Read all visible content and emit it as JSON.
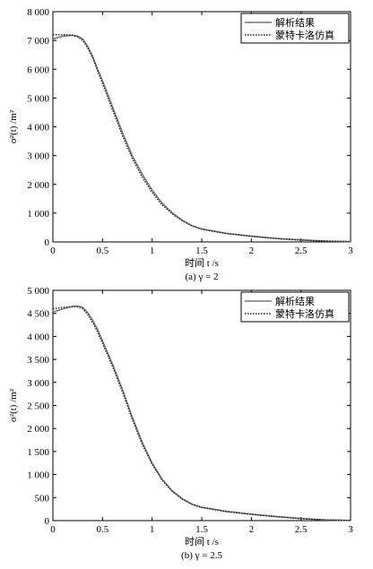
{
  "chart_data": [
    {
      "type": "line",
      "panel_label": "(a) γ = 2",
      "xlabel": "时间 t /s",
      "ylabel": "σ²(t) /m²",
      "xlim": [
        0,
        3
      ],
      "ylim": [
        0,
        8000
      ],
      "xticks": [
        0,
        0.5,
        1,
        1.5,
        2,
        2.5,
        3
      ],
      "xtick_labels": [
        "0",
        "0.5",
        "1",
        "1.5",
        "2",
        "2.5",
        "3"
      ],
      "yticks": [
        0,
        1000,
        2000,
        3000,
        4000,
        5000,
        6000,
        7000,
        8000
      ],
      "ytick_labels": [
        "0",
        "1 000",
        "2 000",
        "3 000",
        "4 000",
        "5 000",
        "6 000",
        "7 000",
        "8 000"
      ],
      "legend_position": "top-right",
      "series": [
        {
          "name": "解析结果",
          "style": "solid",
          "x": [
            0,
            0.1,
            0.2,
            0.25,
            0.3,
            0.35,
            0.4,
            0.45,
            0.5,
            0.55,
            0.6,
            0.7,
            0.8,
            0.9,
            1.0,
            1.1,
            1.2,
            1.3,
            1.4,
            1.5,
            1.75,
            2.0,
            2.25,
            2.5,
            2.75,
            3.0
          ],
          "y": [
            7050,
            7150,
            7180,
            7150,
            7050,
            6800,
            6450,
            6000,
            5600,
            5150,
            4700,
            3800,
            3000,
            2350,
            1800,
            1350,
            1020,
            760,
            570,
            450,
            300,
            200,
            120,
            70,
            30,
            10
          ]
        },
        {
          "name": "蒙特卡洛仿真",
          "style": "dotted",
          "x": [
            0,
            0.1,
            0.2,
            0.25,
            0.3,
            0.35,
            0.4,
            0.45,
            0.5,
            0.55,
            0.6,
            0.7,
            0.8,
            0.9,
            1.0,
            1.1,
            1.2,
            1.3,
            1.4,
            1.5,
            1.75,
            2.0,
            2.25,
            2.5,
            2.75,
            3.0
          ],
          "y": [
            7200,
            7200,
            7180,
            7120,
            7000,
            6750,
            6400,
            5950,
            5500,
            5050,
            4600,
            3700,
            2900,
            2250,
            1720,
            1290,
            980,
            740,
            560,
            440,
            290,
            195,
            115,
            65,
            28,
            8
          ]
        }
      ]
    },
    {
      "type": "line",
      "panel_label": "(b) γ = 2.5",
      "xlabel": "时间 t /s",
      "ylabel": "σ²(t) /m²",
      "xlim": [
        0,
        3
      ],
      "ylim": [
        0,
        5000
      ],
      "xticks": [
        0,
        0.5,
        1,
        1.5,
        2,
        2.5,
        3
      ],
      "xtick_labels": [
        "0",
        "0.5",
        "1",
        "1.5",
        "2",
        "2.5",
        "3"
      ],
      "yticks": [
        0,
        500,
        1000,
        1500,
        2000,
        2500,
        3000,
        3500,
        4000,
        4500,
        5000
      ],
      "ytick_labels": [
        "0",
        "500",
        "1 000",
        "1 500",
        "2 000",
        "2 500",
        "3 000",
        "3 500",
        "4 000",
        "4 500",
        "5 000"
      ],
      "legend_position": "top-right",
      "series": [
        {
          "name": "解析结果",
          "style": "solid",
          "x": [
            0,
            0.1,
            0.2,
            0.25,
            0.3,
            0.35,
            0.4,
            0.45,
            0.5,
            0.55,
            0.6,
            0.7,
            0.8,
            0.9,
            1.0,
            1.1,
            1.2,
            1.3,
            1.4,
            1.5,
            1.75,
            2.0,
            2.25,
            2.5,
            2.75,
            3.0
          ],
          "y": [
            4530,
            4600,
            4650,
            4660,
            4630,
            4520,
            4350,
            4150,
            3900,
            3650,
            3400,
            2850,
            2250,
            1700,
            1250,
            900,
            650,
            480,
            360,
            290,
            200,
            140,
            90,
            45,
            15,
            3
          ]
        },
        {
          "name": "蒙特卡洛仿真",
          "style": "dotted",
          "x": [
            0,
            0.1,
            0.2,
            0.25,
            0.3,
            0.35,
            0.4,
            0.45,
            0.5,
            0.55,
            0.6,
            0.7,
            0.8,
            0.9,
            1.0,
            1.1,
            1.2,
            1.3,
            1.4,
            1.5,
            1.75,
            2.0,
            2.25,
            2.5,
            2.75,
            3.0
          ],
          "y": [
            4600,
            4630,
            4650,
            4640,
            4600,
            4480,
            4300,
            4100,
            3850,
            3600,
            3350,
            2800,
            2200,
            1660,
            1220,
            880,
            640,
            470,
            355,
            285,
            195,
            135,
            85,
            42,
            14,
            2
          ]
        }
      ]
    }
  ]
}
